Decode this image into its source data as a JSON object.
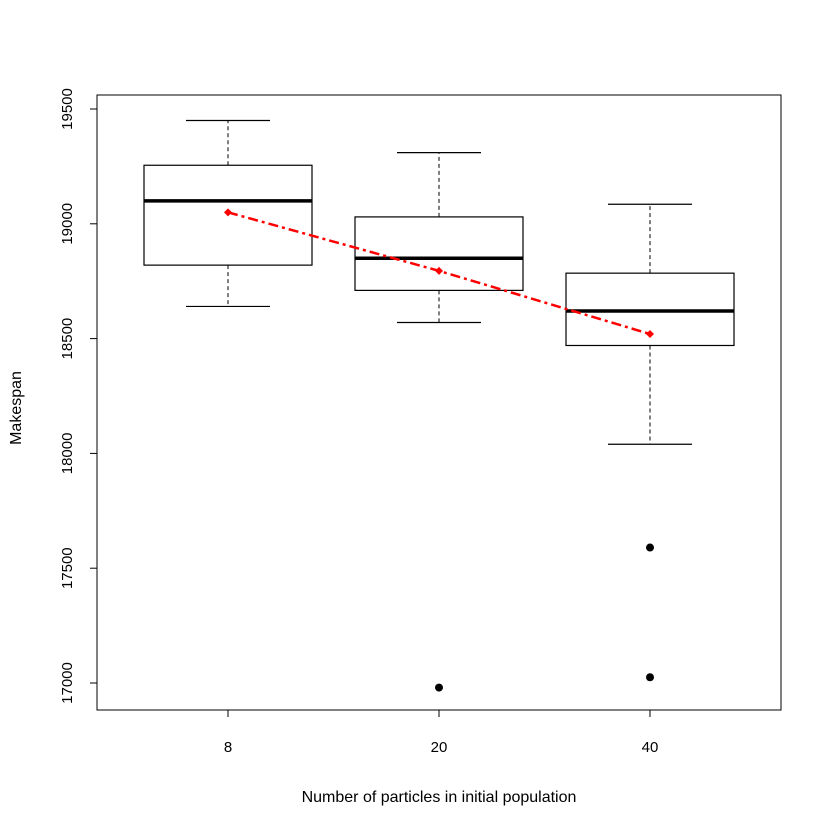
{
  "chart_data": {
    "type": "boxplot",
    "title": "",
    "xlabel": "Number of particles in initial population",
    "ylabel": "Makespan",
    "ylim": [
      16880,
      19620
    ],
    "yticks": [
      17000,
      17500,
      18000,
      18500,
      19000,
      19500
    ],
    "ytick_labels": [
      "17000",
      "17500",
      "18000",
      "18500",
      "19000",
      "19500"
    ],
    "categories": [
      "8",
      "20",
      "40"
    ],
    "boxes": [
      {
        "category": "8",
        "whisker_low": 18640,
        "q1": 18820,
        "median": 19100,
        "q3": 19255,
        "whisker_high": 19450,
        "outliers": []
      },
      {
        "category": "20",
        "whisker_low": 18570,
        "q1": 18710,
        "median": 18850,
        "q3": 19030,
        "whisker_high": 19310,
        "outliers": [
          16980
        ]
      },
      {
        "category": "40",
        "whisker_low": 18040,
        "q1": 18470,
        "median": 18620,
        "q3": 18785,
        "whisker_high": 19085,
        "outliers": [
          17590,
          17025
        ]
      }
    ],
    "mean_series": {
      "name": "Mean",
      "color": "#ff0000",
      "values": [
        19050,
        18795,
        18520
      ]
    },
    "grid": false,
    "colors": {
      "box": "#000000",
      "mean": "#ff0000",
      "outlier": "#000000"
    }
  }
}
